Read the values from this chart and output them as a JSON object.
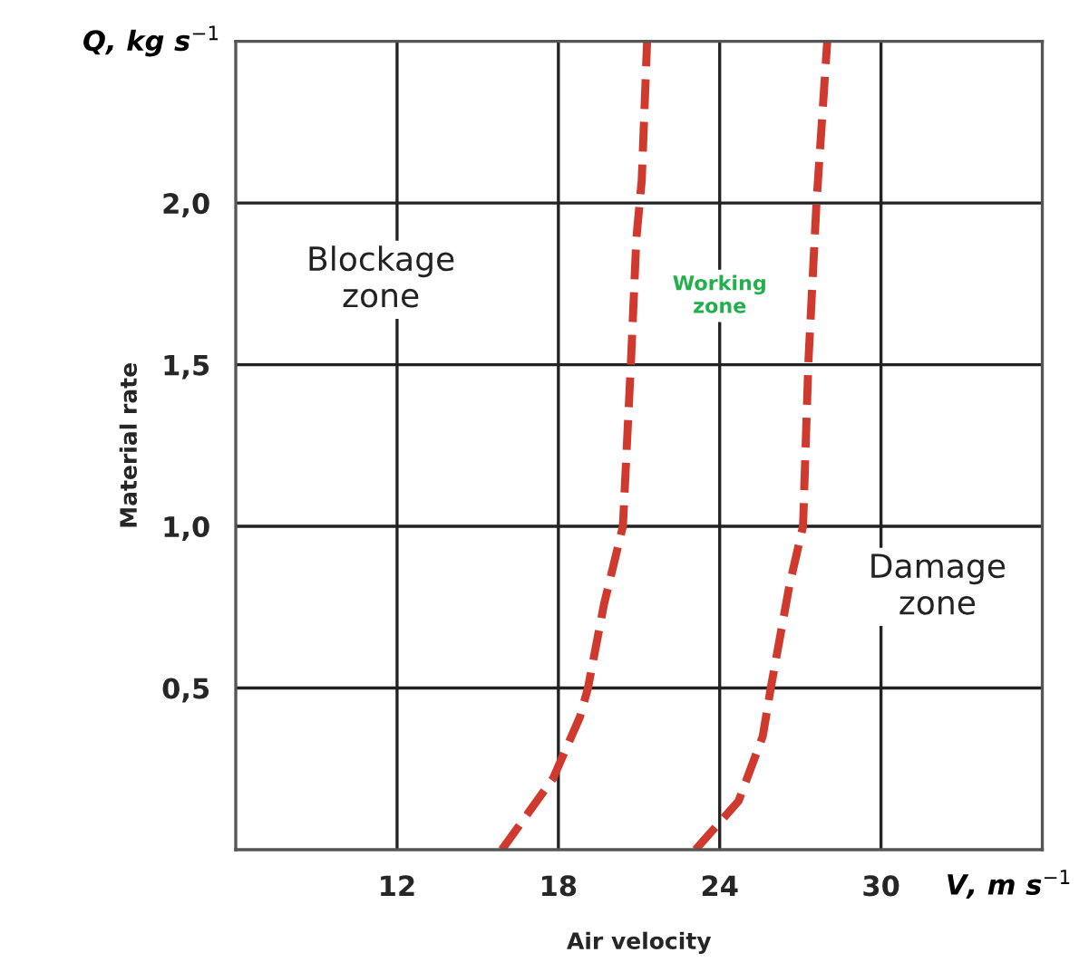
{
  "chart_data": {
    "type": "line",
    "xlabel": "Air velocity",
    "ylabel": "Material rate",
    "xlim": [
      6,
      36
    ],
    "xticks": [
      12,
      18,
      24,
      30
    ],
    "ylim": [
      0,
      2.5
    ],
    "yticks": [
      {
        "value": 0.5,
        "label": "0,5"
      },
      {
        "value": 1.0,
        "label": "1,0"
      },
      {
        "value": 1.5,
        "label": "1,5"
      },
      {
        "value": 2.0,
        "label": "2,0"
      }
    ],
    "grid": true,
    "line_style": "dashed",
    "series": [
      {
        "color": "#d03a2e",
        "x": [
          15.9,
          17.8,
          18.8,
          19.1,
          19.7,
          20.4,
          20.7,
          20.9,
          21.1,
          21.3
        ],
        "values": [
          0,
          0.22,
          0.41,
          0.5,
          0.76,
          1.0,
          1.51,
          1.89,
          2.07,
          2.5
        ]
      },
      {
        "color": "#d03a2e",
        "x": [
          23.1,
          24.7,
          25.6,
          25.9,
          26.6,
          27.1,
          27.3,
          27.6,
          28.0
        ],
        "values": [
          0,
          0.15,
          0.35,
          0.5,
          0.82,
          1.0,
          1.51,
          2.0,
          2.5
        ]
      }
    ],
    "annotations": [
      "Q, kg s$^{−1}$",
      "V, m s$^{−1}$",
      "Blockage\nzone",
      "Working\nzone",
      "Damage\nzone"
    ]
  }
}
